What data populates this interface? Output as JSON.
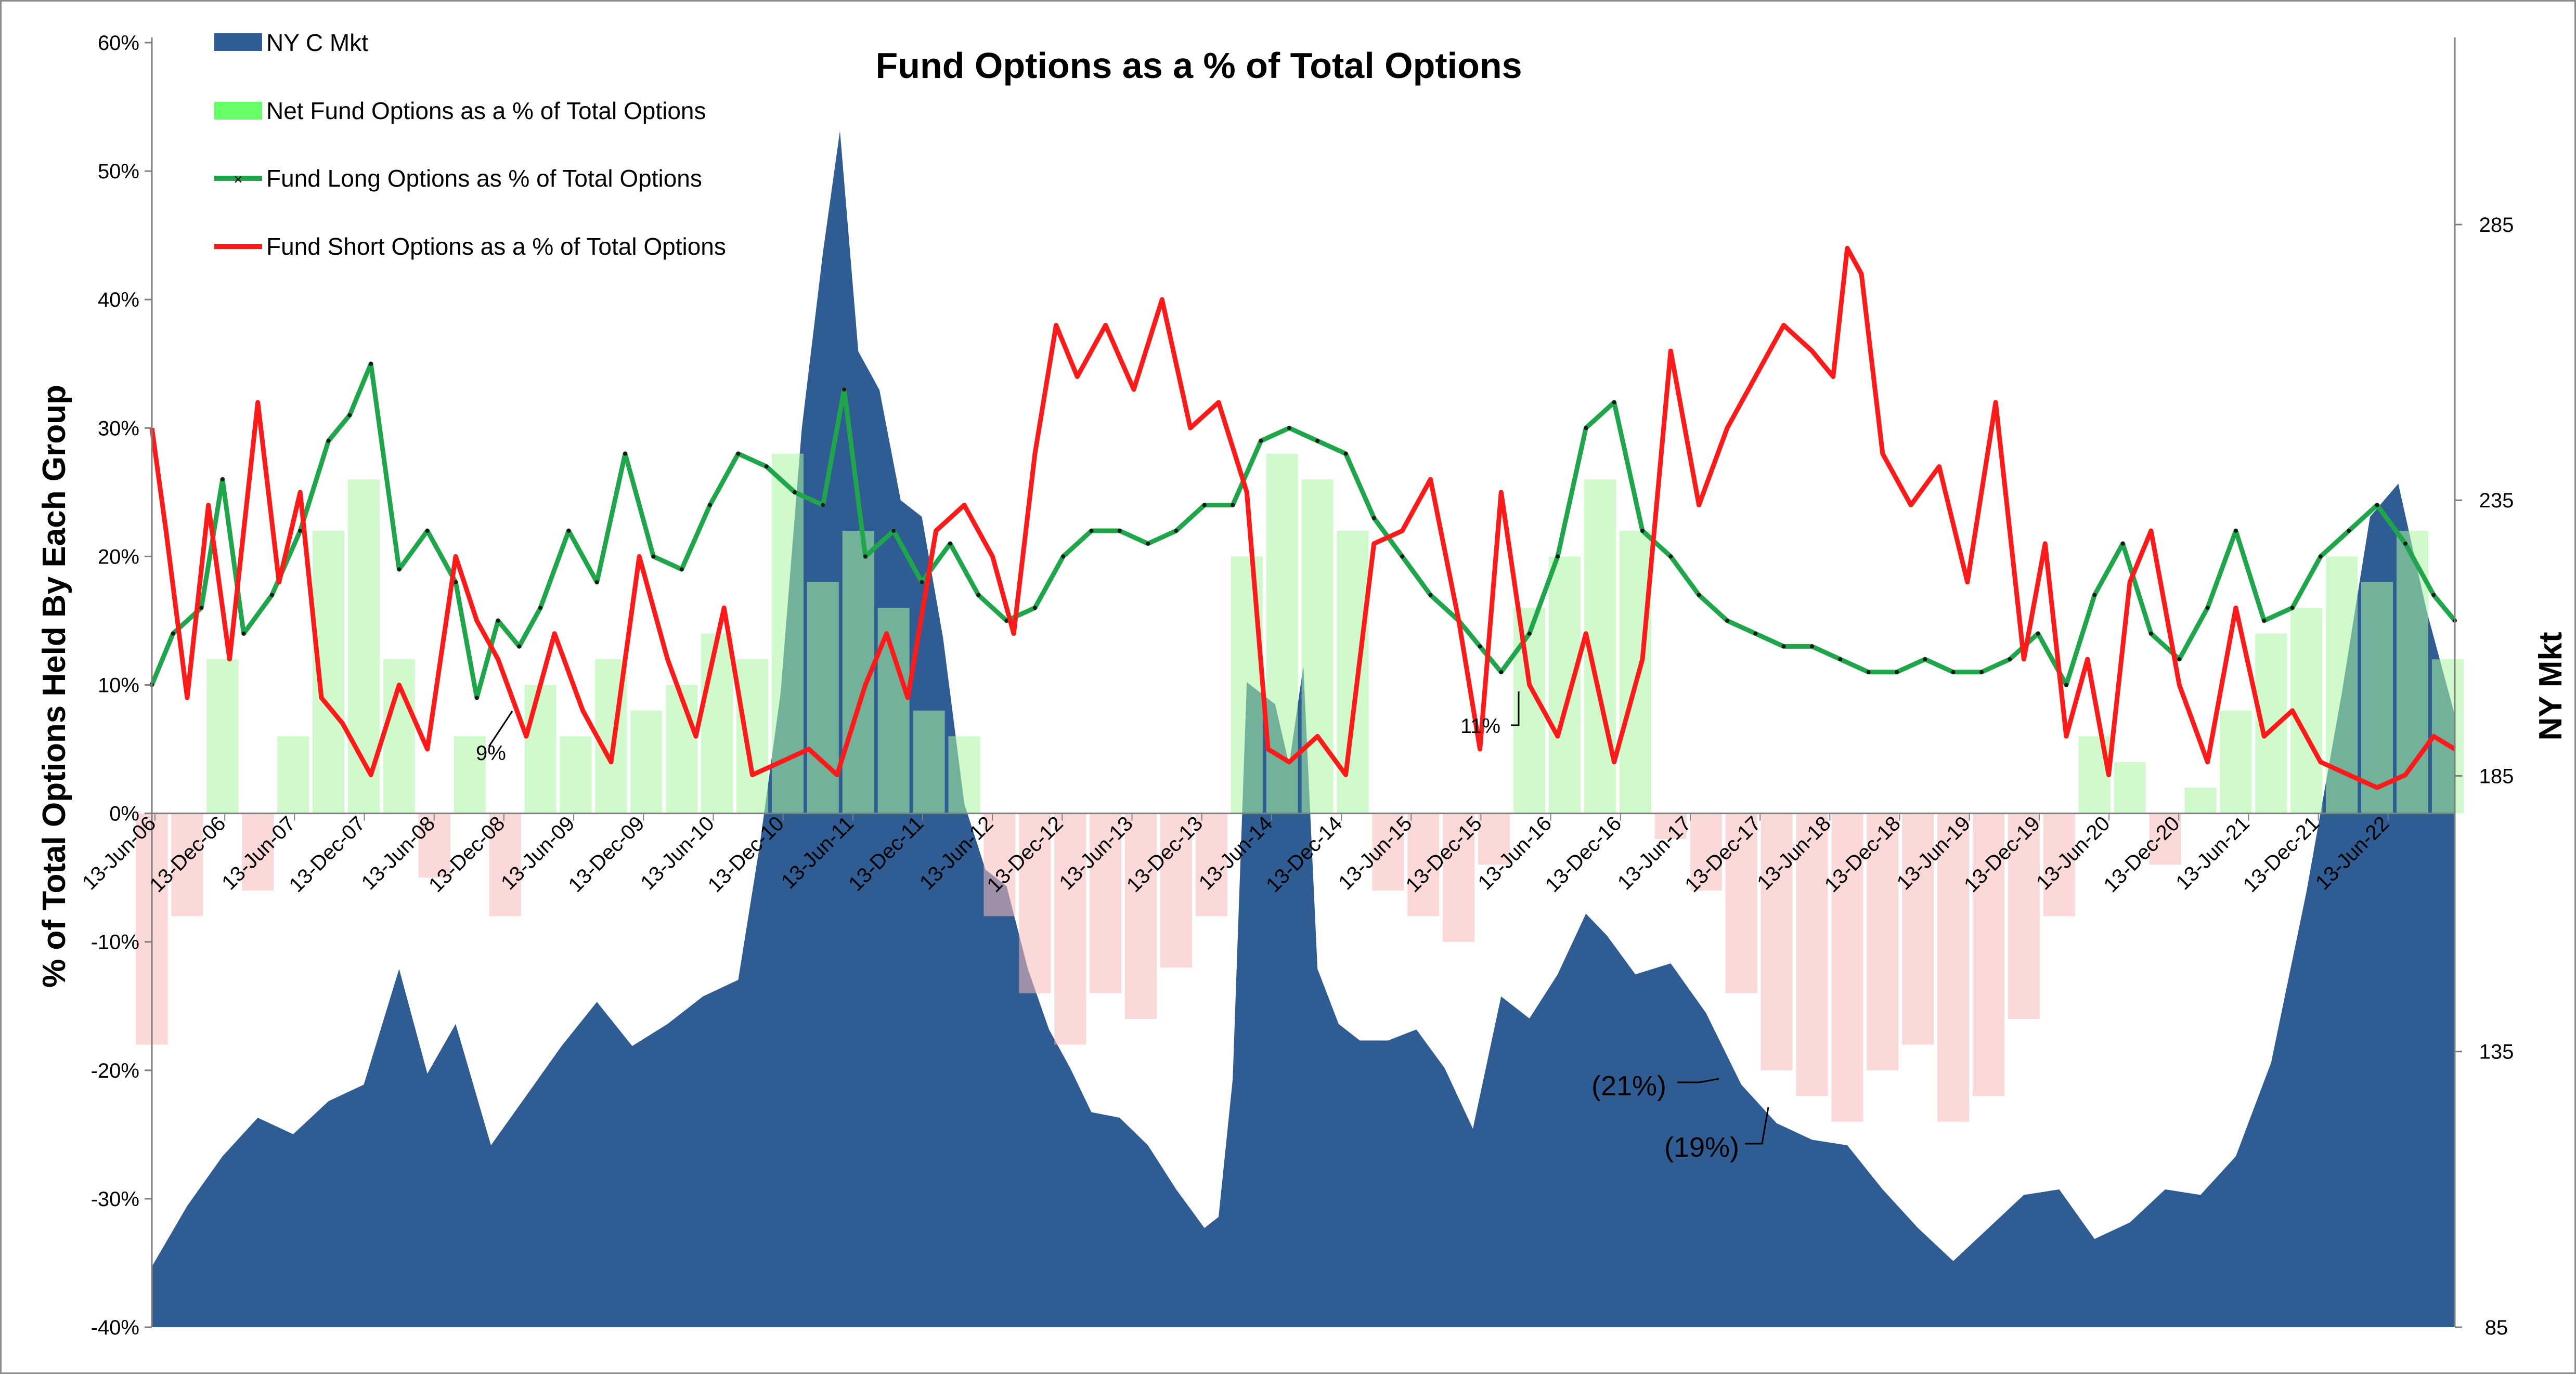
{
  "chart_data": {
    "type": "line",
    "title": "Fund Options as a % of Total Options",
    "ylabel_left": "% of Total Options Held By Each Group",
    "ylabel_right": "NY Mkt",
    "ylim_left": [
      -40,
      60
    ],
    "ylim_right": [
      85,
      318
    ],
    "left_ticks": [
      "60%",
      "50%",
      "40%",
      "30%",
      "20%",
      "10%",
      "0%",
      "-10%",
      "-20%",
      "-30%",
      "-40%"
    ],
    "right_ticks": [
      "285",
      "235",
      "185",
      "135",
      "85"
    ],
    "x_ticks": [
      "13-Jun-06",
      "13-Dec-06",
      "13-Jun-07",
      "13-Dec-07",
      "13-Jun-08",
      "13-Dec-08",
      "13-Jun-09",
      "13-Dec-09",
      "13-Jun-10",
      "13-Dec-10",
      "13-Jun-11",
      "13-Dec-11",
      "13-Jun-12",
      "13-Dec-12",
      "13-Jun-13",
      "13-Dec-13",
      "13-Jun-14",
      "13-Dec-14",
      "13-Jun-15",
      "13-Dec-15",
      "13-Jun-16",
      "13-Dec-16",
      "13-Jun-17",
      "13-Dec-17",
      "13-Jun-18",
      "13-Dec-18",
      "13-Jun-19",
      "13-Dec-19",
      "13-Jun-20",
      "13-Dec-20",
      "13-Jun-21",
      "13-Dec-21",
      "13-Jun-22"
    ],
    "x_range": [
      2006.45,
      2022.75
    ],
    "grid": false,
    "legend_position": "top-left",
    "legend": [
      {
        "name": "NY C Mkt",
        "swatch": "area"
      },
      {
        "name": "Net Fund Options as a % of Total Options",
        "swatch": "bar"
      },
      {
        "name": "Fund Long Options as % of Total Options",
        "swatch": "line-marker"
      },
      {
        "name": "Fund Short Options as a % of Total Options",
        "swatch": "line"
      }
    ],
    "colors": {
      "ny_mkt": "#2F5D93",
      "net_positive": "#AAF5A0",
      "net_negative": "#F9B9B9",
      "long": "#1FA64A",
      "short": "#FF1A1A",
      "marker": "#1a1a1a"
    },
    "series": [
      {
        "name": "NY C Mkt",
        "axis": "right",
        "type": "area",
        "x": [
          2006.45,
          2006.7,
          2006.95,
          2007.2,
          2007.45,
          2007.7,
          2007.95,
          2008.2,
          2008.4,
          2008.6,
          2008.85,
          2009.1,
          2009.35,
          2009.6,
          2009.85,
          2010.1,
          2010.35,
          2010.6,
          2010.75,
          2010.9,
          2011.05,
          2011.2,
          2011.32,
          2011.45,
          2011.6,
          2011.75,
          2011.9,
          2012.05,
          2012.2,
          2012.35,
          2012.5,
          2012.65,
          2012.8,
          2012.95,
          2013.1,
          2013.3,
          2013.5,
          2013.7,
          2013.9,
          2014.0,
          2014.1,
          2014.2,
          2014.3,
          2014.4,
          2014.5,
          2014.6,
          2014.7,
          2014.85,
          2015.0,
          2015.2,
          2015.4,
          2015.6,
          2015.8,
          2016.0,
          2016.2,
          2016.4,
          2016.6,
          2016.75,
          2016.95,
          2017.2,
          2017.45,
          2017.7,
          2017.95,
          2018.2,
          2018.45,
          2018.7,
          2018.95,
          2019.2,
          2019.45,
          2019.7,
          2019.95,
          2020.2,
          2020.45,
          2020.7,
          2020.95,
          2021.2,
          2021.45,
          2021.7,
          2021.95,
          2022.15,
          2022.35,
          2022.55,
          2022.75
        ],
        "values": [
          96,
          107,
          116,
          123,
          120,
          126,
          129,
          150,
          131,
          140,
          118,
          127,
          136,
          144,
          136,
          140,
          145,
          148,
          172,
          200,
          248,
          280,
          302,
          262,
          255,
          235,
          232,
          210,
          180,
          168,
          165,
          150,
          139,
          132,
          124,
          123,
          118,
          110,
          103,
          105,
          130,
          202,
          200,
          198,
          187,
          205,
          150,
          140,
          137,
          137,
          139,
          132,
          121,
          145,
          141,
          149,
          160,
          156,
          149,
          151,
          142,
          129,
          122,
          119,
          118,
          110,
          103,
          97,
          103,
          109,
          110,
          101,
          104,
          110,
          109,
          116,
          133,
          164,
          200,
          232,
          238,
          215,
          196
        ]
      },
      {
        "name": "Net Fund Options as a % of Total Options",
        "axis": "left",
        "type": "bar",
        "x": [
          2006.45,
          2006.7,
          2006.95,
          2007.2,
          2007.45,
          2007.7,
          2007.95,
          2008.2,
          2008.45,
          2008.7,
          2008.95,
          2009.2,
          2009.45,
          2009.7,
          2009.95,
          2010.2,
          2010.45,
          2010.7,
          2010.95,
          2011.2,
          2011.45,
          2011.7,
          2011.95,
          2012.2,
          2012.45,
          2012.7,
          2012.95,
          2013.2,
          2013.45,
          2013.7,
          2013.95,
          2014.2,
          2014.45,
          2014.7,
          2014.95,
          2015.2,
          2015.45,
          2015.7,
          2015.95,
          2016.2,
          2016.45,
          2016.7,
          2016.95,
          2017.2,
          2017.45,
          2017.7,
          2017.95,
          2018.2,
          2018.45,
          2018.7,
          2018.95,
          2019.2,
          2019.45,
          2019.7,
          2019.95,
          2020.2,
          2020.45,
          2020.7,
          2020.95,
          2021.2,
          2021.45,
          2021.7,
          2021.95,
          2022.2,
          2022.45,
          2022.7
        ],
        "values": [
          -18,
          -8,
          12,
          -6,
          6,
          22,
          26,
          12,
          -5,
          6,
          -8,
          10,
          6,
          12,
          8,
          10,
          14,
          12,
          28,
          18,
          22,
          16,
          8,
          6,
          -8,
          -14,
          -18,
          -14,
          -16,
          -12,
          -8,
          20,
          28,
          26,
          22,
          -6,
          -8,
          -10,
          -4,
          16,
          20,
          26,
          22,
          -2,
          -6,
          -14,
          -20,
          -22,
          -24,
          -20,
          -18,
          -24,
          -22,
          -16,
          -8,
          6,
          4,
          -4,
          2,
          8,
          14,
          16,
          20,
          18,
          22,
          12
        ]
      },
      {
        "name": "Fund Long Options as % of Total Options",
        "axis": "left",
        "type": "line",
        "x": [
          2006.45,
          2006.6,
          2006.8,
          2006.95,
          2007.1,
          2007.3,
          2007.5,
          2007.7,
          2007.85,
          2008.0,
          2008.2,
          2008.4,
          2008.6,
          2008.75,
          2008.9,
          2009.05,
          2009.2,
          2009.4,
          2009.6,
          2009.8,
          2010.0,
          2010.2,
          2010.4,
          2010.6,
          2010.8,
          2011.0,
          2011.2,
          2011.35,
          2011.5,
          2011.7,
          2011.9,
          2012.1,
          2012.3,
          2012.5,
          2012.7,
          2012.9,
          2013.1,
          2013.3,
          2013.5,
          2013.7,
          2013.9,
          2014.1,
          2014.3,
          2014.5,
          2014.7,
          2014.9,
          2015.1,
          2015.3,
          2015.5,
          2015.7,
          2015.85,
          2016.0,
          2016.2,
          2016.4,
          2016.6,
          2016.8,
          2017.0,
          2017.2,
          2017.4,
          2017.6,
          2017.8,
          2018.0,
          2018.2,
          2018.4,
          2018.6,
          2018.8,
          2019.0,
          2019.2,
          2019.4,
          2019.6,
          2019.8,
          2020.0,
          2020.2,
          2020.4,
          2020.6,
          2020.8,
          2021.0,
          2021.2,
          2021.4,
          2021.6,
          2021.8,
          2022.0,
          2022.2,
          2022.4,
          2022.6,
          2022.75
        ],
        "values": [
          10,
          14,
          16,
          26,
          14,
          17,
          22,
          29,
          31,
          35,
          19,
          22,
          18,
          9,
          15,
          13,
          16,
          22,
          18,
          28,
          20,
          19,
          24,
          28,
          27,
          25,
          24,
          33,
          20,
          22,
          18,
          21,
          17,
          15,
          16,
          20,
          22,
          22,
          21,
          22,
          24,
          24,
          29,
          30,
          29,
          28,
          23,
          20,
          17,
          15,
          13,
          11,
          14,
          20,
          30,
          32,
          22,
          20,
          17,
          15,
          14,
          13,
          13,
          12,
          11,
          11,
          12,
          11,
          11,
          12,
          14,
          10,
          17,
          21,
          14,
          12,
          16,
          22,
          15,
          16,
          20,
          22,
          24,
          21,
          17,
          15
        ]
      },
      {
        "name": "Fund Short Options as a % of Total Options",
        "axis": "left",
        "type": "line",
        "x": [
          2006.45,
          2006.55,
          2006.7,
          2006.85,
          2007.0,
          2007.2,
          2007.35,
          2007.5,
          2007.65,
          2007.8,
          2008.0,
          2008.2,
          2008.4,
          2008.6,
          2008.75,
          2008.9,
          2009.1,
          2009.3,
          2009.5,
          2009.7,
          2009.9,
          2010.1,
          2010.3,
          2010.5,
          2010.7,
          2010.9,
          2011.1,
          2011.3,
          2011.5,
          2011.65,
          2011.8,
          2012.0,
          2012.2,
          2012.4,
          2012.55,
          2012.7,
          2012.85,
          2013.0,
          2013.2,
          2013.4,
          2013.6,
          2013.8,
          2014.0,
          2014.2,
          2014.35,
          2014.5,
          2014.7,
          2014.9,
          2015.1,
          2015.3,
          2015.5,
          2015.7,
          2015.85,
          2016.0,
          2016.2,
          2016.4,
          2016.6,
          2016.8,
          2017.0,
          2017.2,
          2017.4,
          2017.6,
          2017.8,
          2018.0,
          2018.2,
          2018.35,
          2018.45,
          2018.55,
          2018.7,
          2018.9,
          2019.1,
          2019.3,
          2019.5,
          2019.7,
          2019.85,
          2020.0,
          2020.15,
          2020.3,
          2020.45,
          2020.6,
          2020.8,
          2021.0,
          2021.2,
          2021.4,
          2021.6,
          2021.8,
          2022.0,
          2022.2,
          2022.4,
          2022.6,
          2022.75
        ],
        "values": [
          30,
          22,
          9,
          24,
          12,
          32,
          18,
          25,
          9,
          7,
          3,
          10,
          5,
          20,
          15,
          12,
          6,
          14,
          8,
          4,
          20,
          12,
          6,
          16,
          3,
          4,
          5,
          3,
          10,
          14,
          9,
          22,
          24,
          20,
          14,
          28,
          38,
          34,
          38,
          33,
          40,
          30,
          32,
          25,
          5,
          4,
          6,
          3,
          21,
          22,
          26,
          15,
          5,
          25,
          10,
          6,
          14,
          4,
          12,
          36,
          24,
          30,
          34,
          38,
          36,
          34,
          44,
          42,
          28,
          24,
          27,
          18,
          32,
          12,
          21,
          6,
          12,
          3,
          18,
          22,
          10,
          4,
          16,
          6,
          8,
          4,
          3,
          2,
          3,
          6,
          5
        ]
      }
    ],
    "annotations": [
      "9%",
      "11%",
      "(21%)",
      "(19%)"
    ]
  }
}
